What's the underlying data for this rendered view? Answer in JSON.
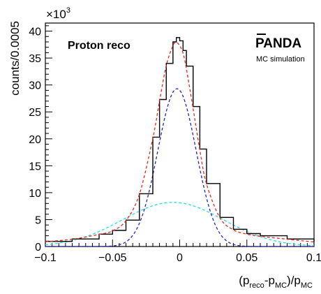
{
  "chart_data": {
    "type": "line",
    "xlim": [
      -0.1,
      0.1
    ],
    "ylim": [
      0,
      41500
    ],
    "x_ticks": [
      "−0.1",
      "−0.05",
      "0",
      "0.05",
      "0.1"
    ],
    "y_ticks": [
      "0",
      "5",
      "10",
      "15",
      "20",
      "25",
      "30",
      "35",
      "40"
    ],
    "y_multiplier": "×10",
    "y_multiplier_exp": "3",
    "ylabel": "counts/0.0005",
    "xlabel": {
      "open": "(p",
      "sub1": "reco",
      "dash": "-p",
      "sub2": "MC",
      "slash": ")/p",
      "sub3": "MC"
    },
    "annotations": {
      "text": "Proton reco",
      "logo": "PANDA",
      "logo_sub": "MC simulation"
    },
    "series": [
      {
        "role": "data histogram",
        "color": "#000000",
        "style": "solid step",
        "x": [
          -0.1,
          -0.08,
          -0.06,
          -0.05,
          -0.04,
          -0.03,
          -0.02,
          -0.015,
          -0.01,
          -0.005,
          -0.0025,
          0.0,
          0.0025,
          0.005,
          0.01,
          0.015,
          0.02,
          0.03,
          0.04,
          0.05,
          0.06,
          0.08,
          0.1
        ],
        "y": [
          950,
          1400,
          2300,
          3000,
          4900,
          9800,
          20300,
          27300,
          34000,
          38000,
          38800,
          38200,
          36400,
          33500,
          26000,
          18100,
          11700,
          5400,
          3200,
          2400,
          2000,
          1400,
          900
        ]
      },
      {
        "role": "total fit",
        "color": "#e8291f",
        "style": "dashed",
        "x": [
          -0.1,
          -0.08,
          -0.06,
          -0.05,
          -0.04,
          -0.03,
          -0.02,
          -0.015,
          -0.01,
          -0.005,
          -0.0025,
          0.0,
          0.0025,
          0.005,
          0.01,
          0.015,
          0.02,
          0.03,
          0.04,
          0.05,
          0.06,
          0.08,
          0.1
        ],
        "y": [
          900,
          1350,
          2250,
          2900,
          4800,
          9700,
          20100,
          27000,
          33600,
          37300,
          37900,
          37300,
          35900,
          33000,
          25600,
          17900,
          11600,
          5300,
          3100,
          2300,
          1900,
          1350,
          850
        ]
      },
      {
        "role": "narrow gaussian component",
        "color": "#2323c8",
        "style": "dashed",
        "center": -0.002,
        "sigma": 0.0143,
        "amplitude": 29300
      },
      {
        "role": "broad gaussian component",
        "color": "#22dde8",
        "style": "dashed",
        "center": -0.005,
        "sigma": 0.0375,
        "amplitude": 8200
      }
    ]
  }
}
